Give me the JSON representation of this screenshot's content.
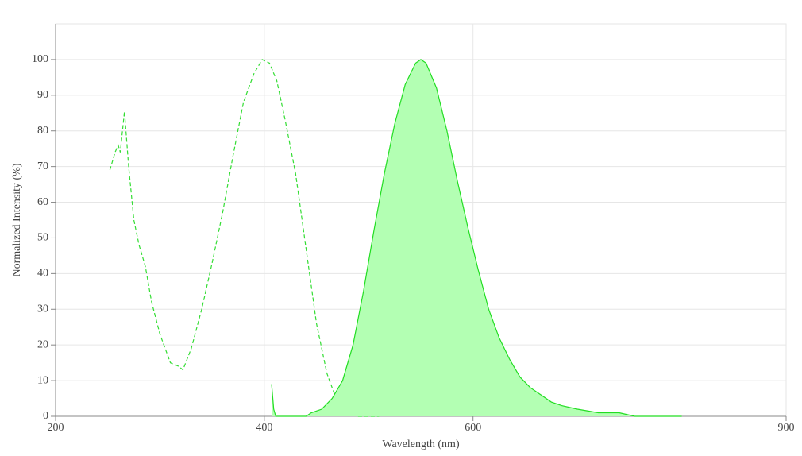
{
  "chart_data": {
    "type": "line",
    "x_label": "Wavelength (nm)",
    "y_label": "Normalized Intensity (%)",
    "xlim": [
      200,
      900
    ],
    "xticks": [
      200,
      400,
      600,
      900
    ],
    "ylim": [
      0,
      110
    ],
    "yticks": [
      0,
      10,
      20,
      30,
      40,
      50,
      60,
      70,
      80,
      90,
      100
    ],
    "grid": true,
    "series": [
      {
        "color": "#33dd33",
        "style": "dashed",
        "x": [
          252,
          257,
          260,
          262,
          266,
          270,
          275,
          280,
          286,
          292,
          300,
          310,
          318,
          322,
          330,
          340,
          350,
          360,
          370,
          380,
          390,
          398,
          405,
          412,
          420,
          430,
          440,
          450,
          460,
          470,
          480,
          490,
          500,
          510
        ],
        "values": [
          69,
          74,
          76,
          74,
          85.5,
          70,
          55,
          48,
          42,
          32,
          23,
          15,
          14,
          13,
          19,
          30,
          43,
          57,
          73,
          88,
          96,
          100,
          99,
          94,
          83,
          68,
          47,
          26,
          12,
          4,
          1,
          0,
          0,
          0
        ]
      },
      {
        "color": "#22dd22",
        "style": "solid",
        "fill": "#b3ffb3",
        "x": [
          407,
          409,
          411,
          440,
          445,
          455,
          465,
          475,
          485,
          495,
          505,
          515,
          525,
          535,
          545,
          550,
          555,
          565,
          575,
          585,
          595,
          605,
          615,
          625,
          635,
          645,
          655,
          665,
          675,
          685,
          700,
          720,
          740,
          755,
          800
        ],
        "values": [
          9,
          2,
          0,
          0,
          1,
          2,
          5,
          10,
          20,
          35,
          52,
          68,
          82,
          93,
          99,
          100,
          99,
          92,
          80,
          66,
          53,
          41,
          30,
          22,
          16,
          11,
          8,
          6,
          4,
          3,
          2,
          1,
          1,
          0,
          0
        ]
      }
    ]
  }
}
